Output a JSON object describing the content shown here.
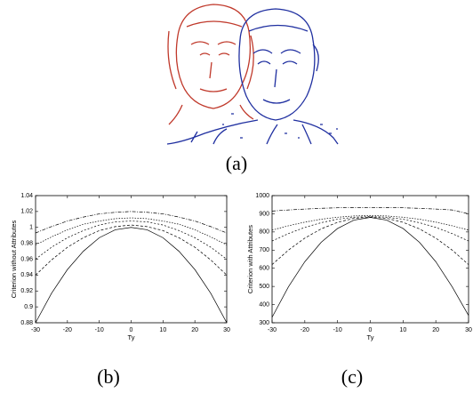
{
  "figure": {
    "captions": [
      "(a)",
      "(b)",
      "(c)"
    ]
  },
  "chart_data": [
    {
      "type": "line",
      "xlabel": "Ty",
      "ylabel": "Criterion without Attributes",
      "x": [
        -30,
        -25,
        -20,
        -15,
        -10,
        -5,
        0,
        5,
        10,
        15,
        20,
        25,
        30
      ],
      "xlim": [
        -30,
        30
      ],
      "xticks": [
        -30,
        -20,
        -10,
        0,
        10,
        20,
        30
      ],
      "ylim": [
        0.88,
        1.04
      ],
      "yticks": [
        0.88,
        0.9,
        0.92,
        0.94,
        0.96,
        0.98,
        1,
        1.02,
        1.04
      ],
      "series": [
        {
          "color": "#000000",
          "dash": "none",
          "values": [
            0.88,
            0.917,
            0.947,
            0.97,
            0.987,
            0.997,
            1.0,
            0.997,
            0.987,
            0.97,
            0.947,
            0.917,
            0.88
          ]
        },
        {
          "color": "#000000",
          "dash": "3 2",
          "values": [
            0.94,
            0.959,
            0.975,
            0.987,
            0.996,
            1.001,
            1.003,
            1.001,
            0.996,
            0.987,
            0.975,
            0.959,
            0.94
          ]
        },
        {
          "color": "#000000",
          "dash": "2 2",
          "values": [
            0.96,
            0.975,
            0.987,
            0.996,
            1.003,
            1.007,
            1.008,
            1.007,
            1.003,
            0.996,
            0.987,
            0.975,
            0.96
          ]
        },
        {
          "color": "#000000",
          "dash": "1.5 1.5",
          "values": [
            0.978,
            0.988,
            0.997,
            1.004,
            1.008,
            1.011,
            1.012,
            1.011,
            1.008,
            1.004,
            0.997,
            0.988,
            0.978
          ]
        },
        {
          "color": "#000000",
          "dash": "4 1.5 1 1.5",
          "values": [
            0.993,
            1.001,
            1.008,
            1.013,
            1.017,
            1.019,
            1.02,
            1.019,
            1.017,
            1.013,
            1.008,
            1.001,
            0.993
          ]
        }
      ]
    },
    {
      "type": "line",
      "xlabel": "Ty",
      "ylabel": "Criterion with Attributes",
      "x": [
        -30,
        -25,
        -20,
        -15,
        -10,
        -5,
        0,
        5,
        10,
        15,
        20,
        25,
        30
      ],
      "xlim": [
        -30,
        30
      ],
      "xticks": [
        -30,
        -20,
        -10,
        0,
        10,
        20,
        30
      ],
      "ylim": [
        300,
        1000
      ],
      "yticks": [
        300,
        400,
        500,
        600,
        700,
        800,
        900,
        1000
      ],
      "series": [
        {
          "color": "#000000",
          "dash": "none",
          "values": [
            330,
            498,
            636,
            743,
            819,
            865,
            880,
            865,
            819,
            743,
            636,
            498,
            340
          ]
        },
        {
          "color": "#000000",
          "dash": "3 2",
          "values": [
            620,
            700,
            766,
            817,
            853,
            875,
            882,
            875,
            853,
            817,
            766,
            700,
            620
          ]
        },
        {
          "color": "#000000",
          "dash": "2 2",
          "values": [
            750,
            791,
            825,
            851,
            870,
            881,
            885,
            881,
            870,
            851,
            825,
            791,
            750
          ]
        },
        {
          "color": "#000000",
          "dash": "1.5 1.5",
          "values": [
            810,
            834,
            854,
            870,
            881,
            888,
            890,
            888,
            881,
            870,
            854,
            834,
            810
          ]
        },
        {
          "color": "#000000",
          "dash": "4 1.5 1 1.5",
          "values": [
            915,
            921,
            926,
            930,
            933,
            934,
            935,
            934,
            933,
            930,
            926,
            921,
            900
          ]
        }
      ]
    }
  ]
}
